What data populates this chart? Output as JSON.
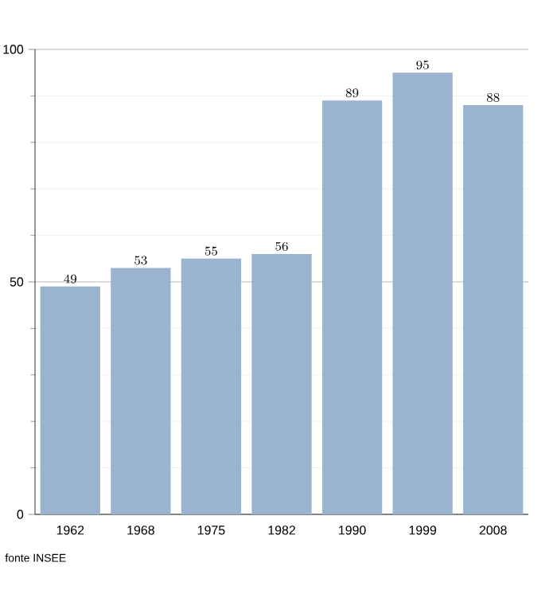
{
  "chart_data": {
    "type": "bar",
    "categories": [
      "1962",
      "1968",
      "1975",
      "1982",
      "1990",
      "1999",
      "2008"
    ],
    "values": [
      49,
      53,
      55,
      56,
      89,
      95,
      88
    ],
    "color": "#9ab3cf",
    "ylim": [
      0,
      100
    ],
    "yticks": [
      0,
      50,
      100
    ],
    "grid": "y",
    "data_labels": true,
    "annotations": [
      "fonte INSEE"
    ]
  }
}
